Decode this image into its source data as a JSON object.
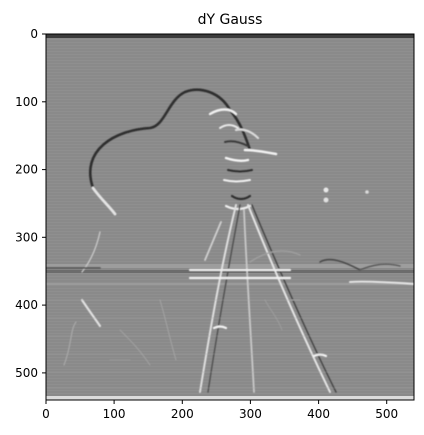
{
  "figure": {
    "title": "dY Gauss"
  },
  "axes": {
    "x_ticks": [
      "0",
      "100",
      "200",
      "300",
      "400",
      "500"
    ],
    "y_ticks": [
      "0",
      "100",
      "200",
      "300",
      "400",
      "500"
    ],
    "x_range": [
      0,
      540
    ],
    "y_range": [
      0,
      540
    ],
    "y_inverted": true
  },
  "image": {
    "description_kind": "grayscale gradient (dY) of Gaussian-filtered cameraman photo",
    "colormap": "gray",
    "background_color": "#8a8a8a"
  }
}
